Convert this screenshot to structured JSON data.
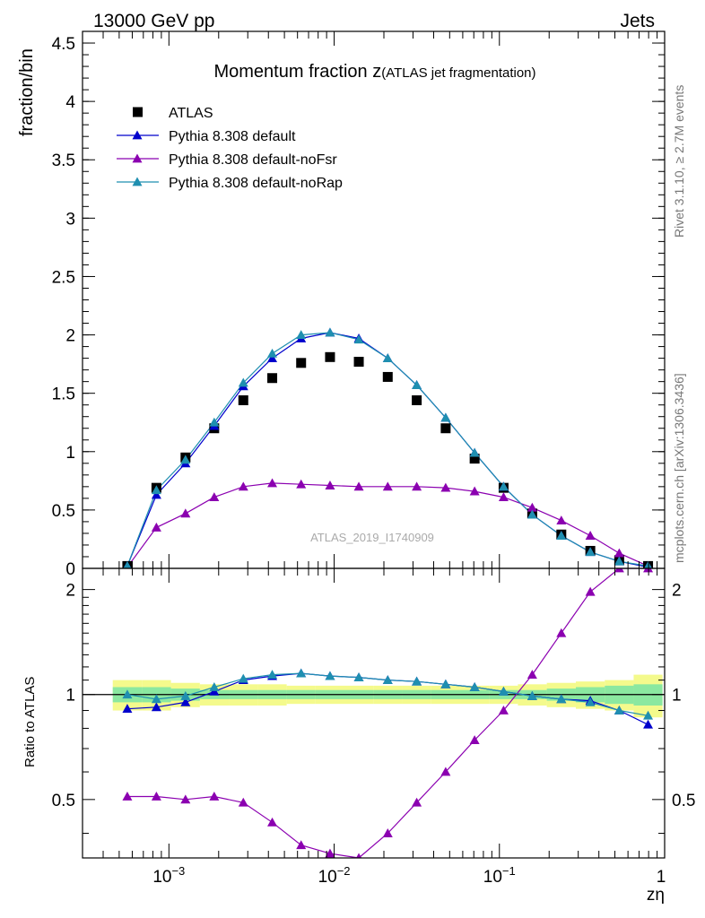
{
  "header": {
    "left": "13000 GeV pp",
    "right": "Jets"
  },
  "side": {
    "rivet": "Rivet 3.1.10, ≥ 2.7M events",
    "mcplots": "mcplots.cern.ch [arXiv:1306.3436]"
  },
  "chart_data": [
    {
      "type": "scatter",
      "title": "Momentum fraction z",
      "subtitle": "(ATLAS jet fragmentation)",
      "ylabel": "fraction/bin",
      "xlabel": "",
      "xscale": "log",
      "xlim": [
        0.0003,
        1
      ],
      "ylim": [
        0,
        4.6
      ],
      "yticks": [
        0,
        0.5,
        1,
        1.5,
        2,
        2.5,
        3,
        3.5,
        4,
        4.5
      ],
      "ytick_labels": [
        "0",
        "0.5",
        "1",
        "1.5",
        "2",
        "2.5",
        "3",
        "3.5",
        "4",
        "4.5"
      ],
      "legend_position": "top-left",
      "watermark": "ATLAS_2019_I1740909",
      "x": [
        0.00056,
        0.00084,
        0.00126,
        0.00188,
        0.00282,
        0.00422,
        0.00631,
        0.00944,
        0.0141,
        0.0211,
        0.0316,
        0.0473,
        0.0708,
        0.106,
        0.158,
        0.237,
        0.355,
        0.531,
        0.794
      ],
      "series": [
        {
          "name": "ATLAS",
          "marker": "square",
          "color": "#000000",
          "values": [
            0.02,
            0.69,
            0.95,
            1.2,
            1.44,
            1.63,
            1.76,
            1.81,
            1.77,
            1.64,
            1.44,
            1.2,
            0.94,
            0.69,
            0.47,
            0.29,
            0.15,
            0.07,
            0.02
          ]
        },
        {
          "name": "Pythia 8.308 default",
          "marker": "triangle",
          "color": "#0000cc",
          "values": [
            0.02,
            0.63,
            0.9,
            1.22,
            1.56,
            1.8,
            1.97,
            2.02,
            1.97,
            1.8,
            1.57,
            1.29,
            0.99,
            0.7,
            0.46,
            0.28,
            0.14,
            0.06,
            0.01
          ]
        },
        {
          "name": "Pythia 8.308 default-noFsr",
          "marker": "triangle",
          "color": "#8b00b0",
          "values": [
            0.01,
            0.35,
            0.47,
            0.61,
            0.7,
            0.73,
            0.72,
            0.71,
            0.7,
            0.7,
            0.7,
            0.69,
            0.66,
            0.61,
            0.52,
            0.41,
            0.28,
            0.13,
            0.02
          ]
        },
        {
          "name": "Pythia 8.308 default-noRap",
          "marker": "triangle",
          "color": "#1f8fb0",
          "values": [
            0.02,
            0.67,
            0.93,
            1.25,
            1.59,
            1.84,
            2.0,
            2.02,
            1.96,
            1.8,
            1.57,
            1.29,
            0.99,
            0.7,
            0.46,
            0.28,
            0.14,
            0.06,
            0.02
          ]
        }
      ]
    },
    {
      "type": "line",
      "ylabel": "Ratio to ATLAS",
      "xlabel": "zη",
      "xscale": "log",
      "xlim": [
        0.0003,
        1
      ],
      "ylim": [
        0.34,
        2.3
      ],
      "xtick_labels": [
        "10−3",
        "10−2",
        "10−1",
        "1"
      ],
      "yticks": [
        0.5,
        1,
        2
      ],
      "ytick_labels": [
        "0.5",
        "1",
        "2"
      ],
      "x": [
        0.00056,
        0.00084,
        0.00126,
        0.00188,
        0.00282,
        0.00422,
        0.00631,
        0.00944,
        0.0141,
        0.0211,
        0.0316,
        0.0473,
        0.0708,
        0.106,
        0.158,
        0.237,
        0.355,
        0.531,
        0.794
      ],
      "series": [
        {
          "name": "Pythia 8.308 default",
          "color": "#0000cc",
          "values": [
            0.91,
            0.92,
            0.95,
            1.02,
            1.1,
            1.13,
            1.15,
            1.13,
            1.12,
            1.1,
            1.09,
            1.07,
            1.05,
            1.02,
            0.99,
            0.97,
            0.96,
            0.9,
            0.82
          ]
        },
        {
          "name": "Pythia 8.308 default-noFsr",
          "color": "#8b00b0",
          "values": [
            0.51,
            0.51,
            0.5,
            0.51,
            0.49,
            0.43,
            0.37,
            0.35,
            0.34,
            0.4,
            0.49,
            0.6,
            0.74,
            0.9,
            1.14,
            1.5,
            1.97,
            2.3,
            2.3
          ]
        },
        {
          "name": "Pythia 8.308 default-noRap",
          "color": "#1f8fb0",
          "values": [
            1.0,
            0.97,
            0.99,
            1.05,
            1.11,
            1.14,
            1.15,
            1.13,
            1.12,
            1.1,
            1.09,
            1.07,
            1.05,
            1.02,
            0.99,
            0.97,
            0.95,
            0.9,
            0.87
          ]
        }
      ],
      "bands": {
        "yellow_color": "#f4fa8c",
        "green_color": "#8be8a0",
        "yellow_halfwidth": [
          0.1,
          0.1,
          0.08,
          0.07,
          0.07,
          0.07,
          0.06,
          0.06,
          0.06,
          0.06,
          0.06,
          0.06,
          0.06,
          0.06,
          0.07,
          0.08,
          0.09,
          0.1,
          0.14
        ],
        "green_halfwidth": [
          0.05,
          0.05,
          0.04,
          0.03,
          0.03,
          0.03,
          0.03,
          0.03,
          0.03,
          0.03,
          0.03,
          0.03,
          0.03,
          0.03,
          0.03,
          0.04,
          0.05,
          0.06,
          0.07
        ]
      }
    }
  ]
}
